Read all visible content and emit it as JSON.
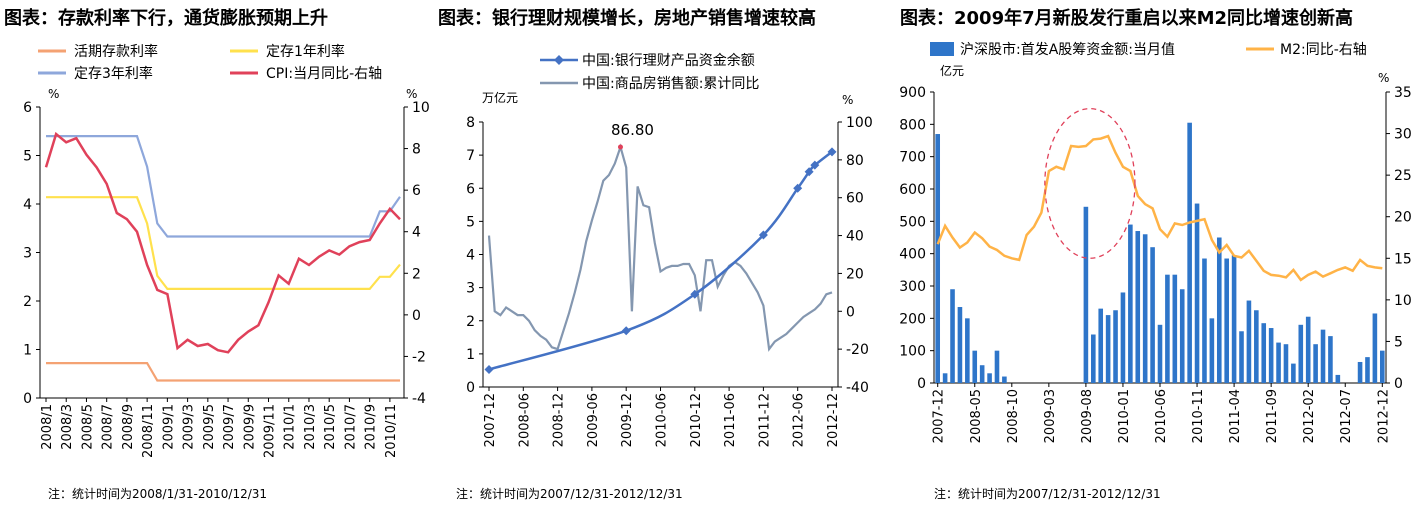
{
  "charts": [
    {
      "title": "图表：存款利率下行，通货膨胀预期上升",
      "note": "注：统计时间为2008/1/31-2010/12/31",
      "left_unit": "%",
      "right_unit": "%",
      "left_ticks": [
        "0",
        "1",
        "2",
        "3",
        "4",
        "5",
        "6"
      ],
      "right_ticks": [
        "-4",
        "-2",
        "0",
        "2",
        "4",
        "6",
        "8",
        "10"
      ],
      "x_labels": [
        "2008/1",
        "2008/3",
        "2008/5",
        "2008/7",
        "2008/9",
        "2008/11",
        "2009/1",
        "2009/3",
        "2009/5",
        "2009/7",
        "2009/9",
        "2009/11",
        "2010/1",
        "2010/3",
        "2010/5",
        "2010/7",
        "2010/9",
        "2010/11"
      ],
      "legend": [
        "活期存款利率",
        "定存1年利率",
        "定存3年利率",
        "CPI:当月同比-右轴"
      ]
    },
    {
      "title": "图表：银行理财规模增长，房地产销售增速较高",
      "note": "注：统计时间为2007/12/31-2012/12/31",
      "left_unit": "万亿元",
      "right_unit": "%",
      "left_ticks": [
        "0",
        "1",
        "2",
        "3",
        "4",
        "5",
        "6",
        "7",
        "8"
      ],
      "right_ticks": [
        "-40",
        "-20",
        "0",
        "20",
        "40",
        "60",
        "80",
        "100"
      ],
      "x_labels": [
        "2007-12",
        "2008-06",
        "2008-12",
        "2009-06",
        "2009-12",
        "2010-06",
        "2010-12",
        "2011-06",
        "2011-12",
        "2012-06",
        "2012-12"
      ],
      "legend": [
        "中国:银行理财产品资金余额",
        "中国:商品房销售额:累计同比"
      ],
      "annotation": "86.80"
    },
    {
      "title": "图表：2009年7月新股发行重启以来M2同比增速创新高",
      "note": "注：统计时间为2007/12/31-2012/12/31",
      "left_unit": "亿元",
      "right_unit": "%",
      "left_ticks": [
        "0",
        "100",
        "200",
        "300",
        "400",
        "500",
        "600",
        "700",
        "800",
        "900"
      ],
      "right_ticks": [
        "0",
        "5",
        "10",
        "15",
        "20",
        "25",
        "30",
        "35"
      ],
      "x_labels": [
        "2007-12",
        "2008-05",
        "2008-10",
        "2009-03",
        "2009-08",
        "2010-01",
        "2010-06",
        "2010-11",
        "2011-04",
        "2011-09",
        "2012-02",
        "2012-07",
        "2012-12"
      ],
      "legend": [
        "沪深股市:首发A股筹资金额:当月值",
        "M2:同比-右轴"
      ]
    }
  ],
  "colors": {
    "demand": "#F4A273",
    "fixed1y": "#FFE14D",
    "fixed3y": "#8EA7DB",
    "cpi": "#E0415A",
    "wmp": "#4472C4",
    "housing": "#8497B0",
    "ipo_bar": "#2E75C9",
    "m2": "#FFB347",
    "highlight": "#E0415A",
    "axis": "#000000",
    "text": "#000000"
  },
  "chart_data": [
    {
      "type": "line",
      "title": "图表：存款利率下行，通货膨胀预期上升",
      "x": [
        "2008/1",
        "2008/2",
        "2008/3",
        "2008/4",
        "2008/5",
        "2008/6",
        "2008/7",
        "2008/8",
        "2008/9",
        "2008/10",
        "2008/11",
        "2008/12",
        "2009/1",
        "2009/2",
        "2009/3",
        "2009/4",
        "2009/5",
        "2009/6",
        "2009/7",
        "2009/8",
        "2009/9",
        "2009/10",
        "2009/11",
        "2009/12",
        "2010/1",
        "2010/2",
        "2010/3",
        "2010/4",
        "2010/5",
        "2010/6",
        "2010/7",
        "2010/8",
        "2010/9",
        "2010/10",
        "2010/11",
        "2010/12"
      ],
      "ylim": [
        0,
        6
      ],
      "y2lim": [
        -4,
        10
      ],
      "series": [
        {
          "name": "活期存款利率",
          "axis": "left",
          "values": [
            0.72,
            0.72,
            0.72,
            0.72,
            0.72,
            0.72,
            0.72,
            0.72,
            0.72,
            0.72,
            0.72,
            0.36,
            0.36,
            0.36,
            0.36,
            0.36,
            0.36,
            0.36,
            0.36,
            0.36,
            0.36,
            0.36,
            0.36,
            0.36,
            0.36,
            0.36,
            0.36,
            0.36,
            0.36,
            0.36,
            0.36,
            0.36,
            0.36,
            0.36,
            0.36,
            0.36
          ]
        },
        {
          "name": "定存1年利率",
          "axis": "left",
          "values": [
            4.14,
            4.14,
            4.14,
            4.14,
            4.14,
            4.14,
            4.14,
            4.14,
            4.14,
            4.14,
            3.6,
            2.52,
            2.25,
            2.25,
            2.25,
            2.25,
            2.25,
            2.25,
            2.25,
            2.25,
            2.25,
            2.25,
            2.25,
            2.25,
            2.25,
            2.25,
            2.25,
            2.25,
            2.25,
            2.25,
            2.25,
            2.25,
            2.25,
            2.5,
            2.5,
            2.75
          ]
        },
        {
          "name": "定存3年利率",
          "axis": "left",
          "values": [
            5.4,
            5.4,
            5.4,
            5.4,
            5.4,
            5.4,
            5.4,
            5.4,
            5.4,
            5.4,
            4.77,
            3.6,
            3.33,
            3.33,
            3.33,
            3.33,
            3.33,
            3.33,
            3.33,
            3.33,
            3.33,
            3.33,
            3.33,
            3.33,
            3.33,
            3.33,
            3.33,
            3.33,
            3.33,
            3.33,
            3.33,
            3.33,
            3.33,
            3.85,
            3.85,
            4.15
          ]
        },
        {
          "name": "CPI:当月同比-右轴",
          "axis": "right",
          "values": [
            7.1,
            8.7,
            8.3,
            8.5,
            7.7,
            7.1,
            6.3,
            4.9,
            4.6,
            4.0,
            2.4,
            1.2,
            1.0,
            -1.6,
            -1.2,
            -1.5,
            -1.4,
            -1.7,
            -1.8,
            -1.2,
            -0.8,
            -0.5,
            0.6,
            1.9,
            1.5,
            2.7,
            2.4,
            2.8,
            3.1,
            2.9,
            3.3,
            3.5,
            3.6,
            4.4,
            5.1,
            4.6
          ]
        }
      ]
    },
    {
      "type": "line",
      "title": "图表：银行理财规模增长，房地产销售增速较高",
      "x": [
        "2007-12",
        "2008-03",
        "2008-06",
        "2008-09",
        "2008-12",
        "2009-03",
        "2009-06",
        "2009-09",
        "2009-12",
        "2010-03",
        "2010-06",
        "2010-09",
        "2010-12",
        "2011-03",
        "2011-06",
        "2011-09",
        "2011-12",
        "2012-03",
        "2012-06",
        "2012-09",
        "2012-12"
      ],
      "ylim": [
        0,
        8
      ],
      "y2lim": [
        -40,
        100
      ],
      "series": [
        {
          "name": "中国:银行理财产品资金余额",
          "axis": "left",
          "points": [
            [
              "2007-12",
              0.53
            ],
            [
              "2009-12",
              1.7
            ],
            [
              "2010-12",
              2.8
            ],
            [
              "2011-12",
              4.59
            ],
            [
              "2012-06",
              6.0
            ],
            [
              "2012-08",
              6.5
            ],
            [
              "2012-09",
              6.7
            ],
            [
              "2012-12",
              7.1
            ]
          ]
        },
        {
          "name": "中国:商品房销售额:累计同比",
          "axis": "right",
          "points": [
            [
              "2007-12",
              40
            ],
            [
              "2008-01",
              0
            ],
            [
              "2008-02",
              -2
            ],
            [
              "2008-03",
              2
            ],
            [
              "2008-04",
              0
            ],
            [
              "2008-05",
              -2
            ],
            [
              "2008-06",
              -2
            ],
            [
              "2008-07",
              -5
            ],
            [
              "2008-08",
              -10
            ],
            [
              "2008-09",
              -13
            ],
            [
              "2008-10",
              -15
            ],
            [
              "2008-11",
              -19
            ],
            [
              "2008-12",
              -20
            ],
            [
              "2009-02",
              -1
            ],
            [
              "2009-03",
              10
            ],
            [
              "2009-04",
              22
            ],
            [
              "2009-05",
              37
            ],
            [
              "2009-06",
              48
            ],
            [
              "2009-07",
              58
            ],
            [
              "2009-08",
              69
            ],
            [
              "2009-09",
              72
            ],
            [
              "2009-10",
              78
            ],
            [
              "2009-11",
              86.8
            ],
            [
              "2009-12",
              76
            ],
            [
              "2010-01",
              0
            ],
            [
              "2010-02",
              66
            ],
            [
              "2010-03",
              56
            ],
            [
              "2010-04",
              55
            ],
            [
              "2010-05",
              36
            ],
            [
              "2010-06",
              21
            ],
            [
              "2010-07",
              23
            ],
            [
              "2010-08",
              24
            ],
            [
              "2010-09",
              24
            ],
            [
              "2010-10",
              25
            ],
            [
              "2010-11",
              25
            ],
            [
              "2010-12",
              19
            ],
            [
              "2011-01",
              0
            ],
            [
              "2011-02",
              27
            ],
            [
              "2011-03",
              27
            ],
            [
              "2011-04",
              13
            ],
            [
              "2011-05",
              19
            ],
            [
              "2011-06",
              24
            ],
            [
              "2011-07",
              26
            ],
            [
              "2011-08",
              24
            ],
            [
              "2011-09",
              20
            ],
            [
              "2011-10",
              15
            ],
            [
              "2011-11",
              10
            ],
            [
              "2011-12",
              3
            ],
            [
              "2012-01",
              -20
            ],
            [
              "2012-02",
              -16
            ],
            [
              "2012-03",
              -14
            ],
            [
              "2012-04",
              -12
            ],
            [
              "2012-05",
              -9
            ],
            [
              "2012-06",
              -6
            ],
            [
              "2012-07",
              -3
            ],
            [
              "2012-08",
              -1
            ],
            [
              "2012-09",
              1
            ],
            [
              "2012-10",
              4
            ],
            [
              "2012-11",
              9
            ],
            [
              "2012-12",
              10
            ]
          ]
        }
      ],
      "annotations": [
        {
          "x": "2009-11",
          "y": 86.8,
          "text": "86.80"
        }
      ]
    },
    {
      "type": "bar",
      "title": "图表：2009年7月新股发行重启以来M2同比增速创新高",
      "x": [
        "2007-12",
        "2008-01",
        "2008-02",
        "2008-03",
        "2008-04",
        "2008-05",
        "2008-06",
        "2008-07",
        "2008-08",
        "2008-09",
        "2008-10",
        "2008-11",
        "2008-12",
        "2009-01",
        "2009-02",
        "2009-03",
        "2009-04",
        "2009-05",
        "2009-06",
        "2009-07",
        "2009-08",
        "2009-09",
        "2009-10",
        "2009-11",
        "2009-12",
        "2010-01",
        "2010-02",
        "2010-03",
        "2010-04",
        "2010-05",
        "2010-06",
        "2010-07",
        "2010-08",
        "2010-09",
        "2010-10",
        "2010-11",
        "2010-12",
        "2011-01",
        "2011-02",
        "2011-03",
        "2011-04",
        "2011-05",
        "2011-06",
        "2011-07",
        "2011-08",
        "2011-09",
        "2011-10",
        "2011-11",
        "2011-12",
        "2012-01",
        "2012-02",
        "2012-03",
        "2012-04",
        "2012-05",
        "2012-06",
        "2012-07",
        "2012-08",
        "2012-09",
        "2012-10",
        "2012-11",
        "2012-12"
      ],
      "ylim": [
        0,
        900
      ],
      "y2lim": [
        0,
        35
      ],
      "series": [
        {
          "name": "沪深股市:首发A股筹资金额:当月值",
          "type": "bar",
          "axis": "left",
          "values": [
            770,
            30,
            290,
            235,
            200,
            100,
            55,
            30,
            100,
            20,
            0,
            0,
            0,
            0,
            0,
            0,
            0,
            0,
            0,
            0,
            545,
            150,
            230,
            210,
            225,
            280,
            490,
            470,
            460,
            420,
            180,
            335,
            335,
            290,
            805,
            555,
            385,
            200,
            450,
            385,
            395,
            160,
            255,
            225,
            185,
            170,
            125,
            120,
            60,
            180,
            205,
            120,
            165,
            145,
            25,
            0,
            0,
            65,
            80,
            215,
            100
          ]
        },
        {
          "name": "M2:同比-右轴",
          "type": "line",
          "axis": "right",
          "values": [
            16.7,
            18.9,
            17.5,
            16.3,
            16.9,
            18.1,
            17.4,
            16.4,
            16.0,
            15.3,
            15.0,
            14.8,
            17.8,
            18.8,
            20.5,
            25.5,
            26.0,
            25.7,
            28.5,
            28.4,
            28.5,
            29.3,
            29.4,
            29.7,
            27.7,
            26.0,
            25.5,
            22.5,
            21.5,
            21.0,
            18.5,
            17.6,
            19.2,
            19.0,
            19.3,
            19.5,
            19.7,
            17.2,
            15.7,
            16.6,
            15.3,
            15.1,
            15.9,
            14.7,
            13.5,
            13.0,
            12.9,
            12.7,
            13.6,
            12.4,
            13.0,
            13.4,
            12.8,
            13.2,
            13.6,
            13.9,
            13.5,
            14.8,
            14.1,
            13.9,
            13.8
          ]
        }
      ],
      "annotations": [
        {
          "shape": "dashed-ellipse",
          "around": "2009-03 to 2010-01 M2 peak"
        }
      ]
    }
  ]
}
